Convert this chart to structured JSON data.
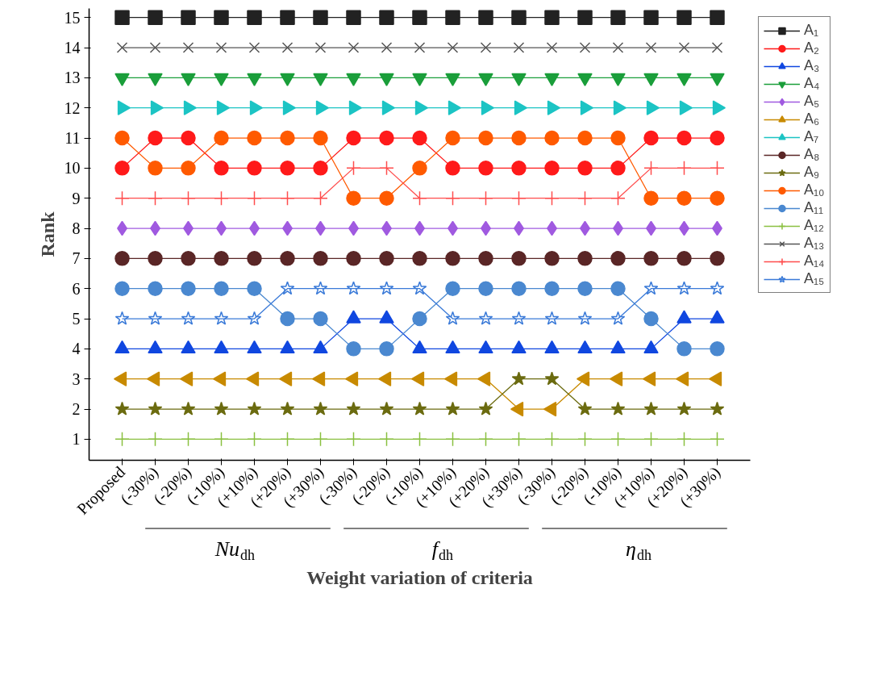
{
  "chart_data": {
    "type": "line",
    "xlabel": "Weight variation of criteria",
    "ylabel": "Rank",
    "categories": [
      "Proposed",
      "(-30%)",
      "(-20%)",
      "(-10%)",
      "(+10%)",
      "(+20%)",
      "(+30%)",
      "(-30%)",
      "(-20%)",
      "(-10%)",
      "(+10%)",
      "(+20%)",
      "(+30%)",
      "(-30%)",
      "(-20%)",
      "(-10%)",
      "(+10%)",
      "(+20%)",
      "(+30%)"
    ],
    "ylim": [
      0.3,
      15.3
    ],
    "yticks": [
      1,
      2,
      3,
      4,
      5,
      6,
      7,
      8,
      9,
      10,
      11,
      12,
      13,
      14,
      15
    ],
    "grid": false,
    "legend": "right",
    "line_style": "solid",
    "annotations": [
      "Nu$_{dh}$",
      "f$_{dh}$",
      "η$_{dh}$"
    ],
    "series": [
      {
        "name": "A₁",
        "color": "#222222",
        "marker": "square",
        "values": [
          15,
          15,
          15,
          15,
          15,
          15,
          15,
          15,
          15,
          15,
          15,
          15,
          15,
          15,
          15,
          15,
          15,
          15,
          15
        ]
      },
      {
        "name": "A₂",
        "color": "#ff1a1a",
        "marker": "circle",
        "values": [
          10,
          11,
          11,
          10,
          10,
          10,
          10,
          11,
          11,
          11,
          10,
          10,
          10,
          10,
          10,
          10,
          11,
          11,
          11
        ]
      },
      {
        "name": "A₃",
        "color": "#1047e0",
        "marker": "triangle",
        "values": [
          4,
          4,
          4,
          4,
          4,
          4,
          4,
          5,
          5,
          4,
          4,
          4,
          4,
          4,
          4,
          4,
          4,
          5,
          5
        ]
      },
      {
        "name": "A₄",
        "color": "#1a9e3a",
        "marker": "triangle_down",
        "values": [
          13,
          13,
          13,
          13,
          13,
          13,
          13,
          13,
          13,
          13,
          13,
          13,
          13,
          13,
          13,
          13,
          13,
          13,
          13
        ]
      },
      {
        "name": "A₅",
        "color": "#a05ae0",
        "marker": "diamond",
        "values": [
          8,
          8,
          8,
          8,
          8,
          8,
          8,
          8,
          8,
          8,
          8,
          8,
          8,
          8,
          8,
          8,
          8,
          8,
          8
        ]
      },
      {
        "name": "A₆",
        "color": "#c88a00",
        "marker": "triangle_left",
        "values": [
          3,
          3,
          3,
          3,
          3,
          3,
          3,
          3,
          3,
          3,
          3,
          3,
          2,
          2,
          3,
          3,
          3,
          3,
          3
        ]
      },
      {
        "name": "A₇",
        "color": "#1cc4c4",
        "marker": "triangle_right",
        "values": [
          12,
          12,
          12,
          12,
          12,
          12,
          12,
          12,
          12,
          12,
          12,
          12,
          12,
          12,
          12,
          12,
          12,
          12,
          12
        ]
      },
      {
        "name": "A₈",
        "color": "#5a2626",
        "marker": "circle",
        "values": [
          7,
          7,
          7,
          7,
          7,
          7,
          7,
          7,
          7,
          7,
          7,
          7,
          7,
          7,
          7,
          7,
          7,
          7,
          7
        ]
      },
      {
        "name": "A₉",
        "color": "#6b6b10",
        "marker": "star",
        "values": [
          2,
          2,
          2,
          2,
          2,
          2,
          2,
          2,
          2,
          2,
          2,
          2,
          3,
          3,
          2,
          2,
          2,
          2,
          2
        ]
      },
      {
        "name": "A₁₀",
        "color": "#ff5a00",
        "marker": "circle",
        "values": [
          11,
          10,
          10,
          11,
          11,
          11,
          11,
          9,
          9,
          10,
          11,
          11,
          11,
          11,
          11,
          11,
          9,
          9,
          9
        ]
      },
      {
        "name": "A₁₁",
        "color": "#4a88d0",
        "marker": "circle",
        "values": [
          6,
          6,
          6,
          6,
          6,
          5,
          5,
          4,
          4,
          5,
          6,
          6,
          6,
          6,
          6,
          6,
          5,
          4,
          4
        ]
      },
      {
        "name": "A₁₂",
        "color": "#8ac040",
        "marker": "cross",
        "values": [
          1,
          1,
          1,
          1,
          1,
          1,
          1,
          1,
          1,
          1,
          1,
          1,
          1,
          1,
          1,
          1,
          1,
          1,
          1
        ]
      },
      {
        "name": "A₁₃",
        "color": "#555555",
        "marker": "x",
        "values": [
          14,
          14,
          14,
          14,
          14,
          14,
          14,
          14,
          14,
          14,
          14,
          14,
          14,
          14,
          14,
          14,
          14,
          14,
          14
        ]
      },
      {
        "name": "A₁₄",
        "color": "#ff4d4d",
        "marker": "cross",
        "values": [
          9,
          9,
          9,
          9,
          9,
          9,
          9,
          10,
          10,
          9,
          9,
          9,
          9,
          9,
          9,
          9,
          10,
          10,
          10
        ]
      },
      {
        "name": "A₁₅",
        "color": "#3a7ad8",
        "marker": "star_open",
        "values": [
          5,
          5,
          5,
          5,
          5,
          6,
          6,
          6,
          6,
          6,
          5,
          5,
          5,
          5,
          5,
          5,
          6,
          6,
          6
        ]
      }
    ]
  }
}
